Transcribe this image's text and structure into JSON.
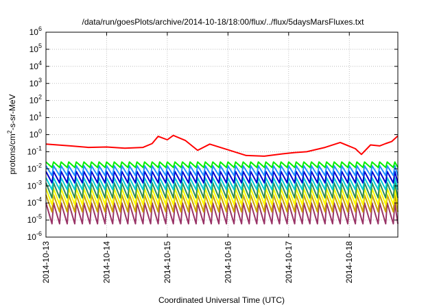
{
  "chart_data": {
    "type": "line",
    "title": "/data/run/goesPlots/archive/2014-10-18/18:00/flux/../flux/5daysMarsFluxes.txt",
    "xlabel": "Coordinated Universal Time (UTC)",
    "ylabel": {
      "prefix": "protons/cm",
      "sup": "2",
      "suffix": "-s-sr-MeV"
    },
    "yscale": "log",
    "ylim_exp": [
      -6,
      6
    ],
    "y_ticks": [
      {
        "base": "10",
        "exp": "-6"
      },
      {
        "base": "10",
        "exp": "-5"
      },
      {
        "base": "10",
        "exp": "-4"
      },
      {
        "base": "10",
        "exp": "-3"
      },
      {
        "base": "10",
        "exp": "-2"
      },
      {
        "base": "10",
        "exp": "-1"
      },
      {
        "base": "10",
        "exp": "0"
      },
      {
        "base": "10",
        "exp": "1"
      },
      {
        "base": "10",
        "exp": "2"
      },
      {
        "base": "10",
        "exp": "3"
      },
      {
        "base": "10",
        "exp": "4"
      },
      {
        "base": "10",
        "exp": "5"
      },
      {
        "base": "10",
        "exp": "6"
      }
    ],
    "x_ticks": [
      "2014-10-13",
      "2014-10-14",
      "2014-10-15",
      "2014-10-16",
      "2014-10-17",
      "2014-10-18"
    ],
    "xlim_days": [
      0,
      5.8
    ],
    "grid": true,
    "legend": "none",
    "series": [
      {
        "color": "#ff0000",
        "kind": "smooth",
        "days": [
          0,
          0.4,
          0.7,
          1.0,
          1.3,
          1.6,
          1.75,
          1.85,
          2.0,
          2.1,
          2.3,
          2.5,
          2.7,
          3.0,
          3.3,
          3.6,
          3.9,
          4.1,
          4.3,
          4.6,
          4.85,
          5.1,
          5.2,
          5.35,
          5.5,
          5.6,
          5.7,
          5.8
        ],
        "values": [
          0.28,
          0.22,
          0.18,
          0.19,
          0.16,
          0.18,
          0.3,
          0.8,
          0.5,
          0.9,
          0.45,
          0.12,
          0.28,
          0.13,
          0.06,
          0.055,
          0.075,
          0.09,
          0.1,
          0.18,
          0.35,
          0.15,
          0.07,
          0.25,
          0.22,
          0.3,
          0.4,
          0.85
        ]
      },
      {
        "color": "#00ee00",
        "kind": "sawtooth",
        "peak": 0.025,
        "trough": 0.012
      },
      {
        "color": "#1e90ff",
        "kind": "sawtooth",
        "peak": 0.015,
        "trough": 0.004
      },
      {
        "color": "#0000cd",
        "kind": "sawtooth",
        "peak": 0.007,
        "trough": 0.0015
      },
      {
        "color": "#00ced1",
        "kind": "sawtooth",
        "peak": 0.003,
        "trough": 0.0006
      },
      {
        "color": "#2e8b57",
        "kind": "sawtooth",
        "peak": 0.0015,
        "trough": 0.0002
      },
      {
        "color": "#ffff00",
        "kind": "sawtooth",
        "peak": 0.0007,
        "trough": 8e-05
      },
      {
        "color": "#c8a000",
        "kind": "sawtooth",
        "peak": 0.0003,
        "trough": 3e-05
      },
      {
        "color": "#993366",
        "kind": "sawtooth",
        "peak": 0.0001,
        "trough": 6e-06
      }
    ]
  }
}
